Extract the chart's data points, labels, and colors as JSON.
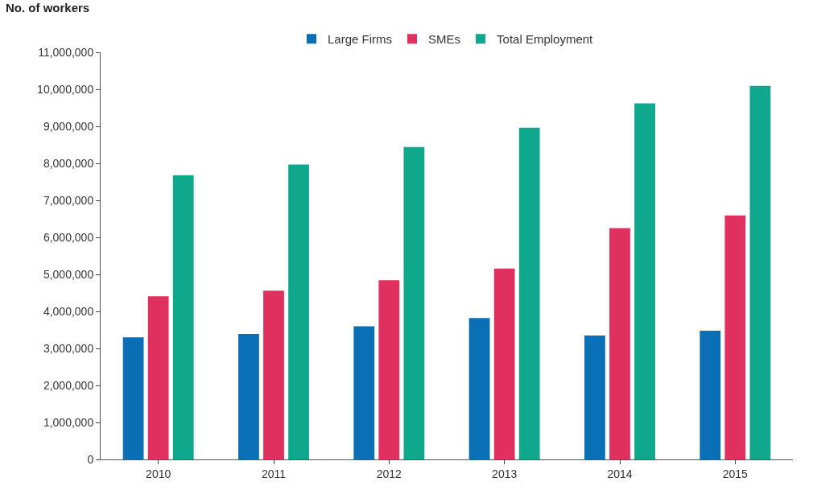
{
  "chart_data": {
    "type": "bar",
    "ylabel": "No. of workers",
    "categories": [
      "2010",
      "2011",
      "2012",
      "2013",
      "2014",
      "2015"
    ],
    "series": [
      {
        "name": "Large Firms",
        "color": "#0a6fb5",
        "values": [
          3300000,
          3390000,
          3600000,
          3820000,
          3350000,
          3480000
        ]
      },
      {
        "name": "SMEs",
        "color": "#e0305f",
        "values": [
          4410000,
          4560000,
          4840000,
          5160000,
          6250000,
          6590000
        ]
      },
      {
        "name": "Total Employment",
        "color": "#0fa88c",
        "values": [
          7680000,
          7970000,
          8440000,
          8960000,
          9620000,
          10090000
        ]
      }
    ],
    "ylim": [
      0,
      11000000
    ],
    "yticks": [
      0,
      {
        "value": 1000000,
        "label": "1,000,000"
      },
      {
        "value": 2000000,
        "label": "2,000,000"
      },
      {
        "value": 3000000,
        "label": "3,000,000"
      },
      {
        "value": 4000000,
        "label": "4,000,000"
      },
      {
        "value": 5000000,
        "label": "5,000,000"
      },
      {
        "value": 6000000,
        "label": "6,000,000"
      },
      {
        "value": 7000000,
        "label": "7,000,000"
      },
      {
        "value": 8000000,
        "label": "8,000,000"
      },
      {
        "value": 9000000,
        "label": "9,000,000"
      },
      {
        "value": 10000000,
        "label": "10,000,000"
      },
      {
        "value": 11000000,
        "label": "11,000,000"
      }
    ],
    "legend": "top"
  }
}
